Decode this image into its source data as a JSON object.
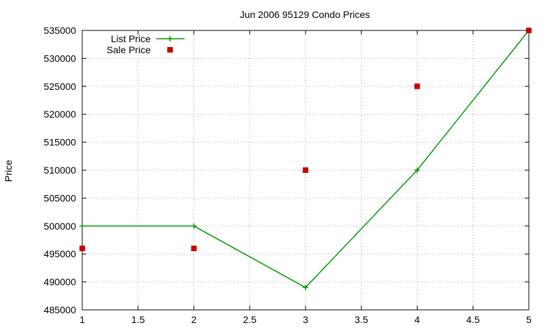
{
  "chart_data": {
    "type": "line",
    "title": "Jun 2006 95129 Condo Prices",
    "xlabel": "",
    "ylabel": "Price",
    "xlim": [
      1,
      5
    ],
    "ylim": [
      485000,
      535000
    ],
    "x_ticks": [
      "1",
      "1.5",
      "2",
      "2.5",
      "3",
      "3.5",
      "4",
      "4.5",
      "5"
    ],
    "y_ticks": [
      "485000",
      "490000",
      "495000",
      "500000",
      "505000",
      "510000",
      "515000",
      "520000",
      "525000",
      "530000",
      "535000"
    ],
    "grid": true,
    "legend_position": "top-left",
    "series": [
      {
        "name": "List Price",
        "style": "linespoints",
        "marker": "plus",
        "color": "#009900",
        "x": [
          1,
          2,
          3,
          4,
          5
        ],
        "y": [
          500000,
          500000,
          489000,
          510000,
          535000
        ]
      },
      {
        "name": "Sale Price",
        "style": "points",
        "marker": "square",
        "color": "#cc0000",
        "x": [
          1,
          2,
          3,
          4,
          5
        ],
        "y": [
          496000,
          496000,
          510000,
          525000,
          535000
        ]
      }
    ]
  }
}
